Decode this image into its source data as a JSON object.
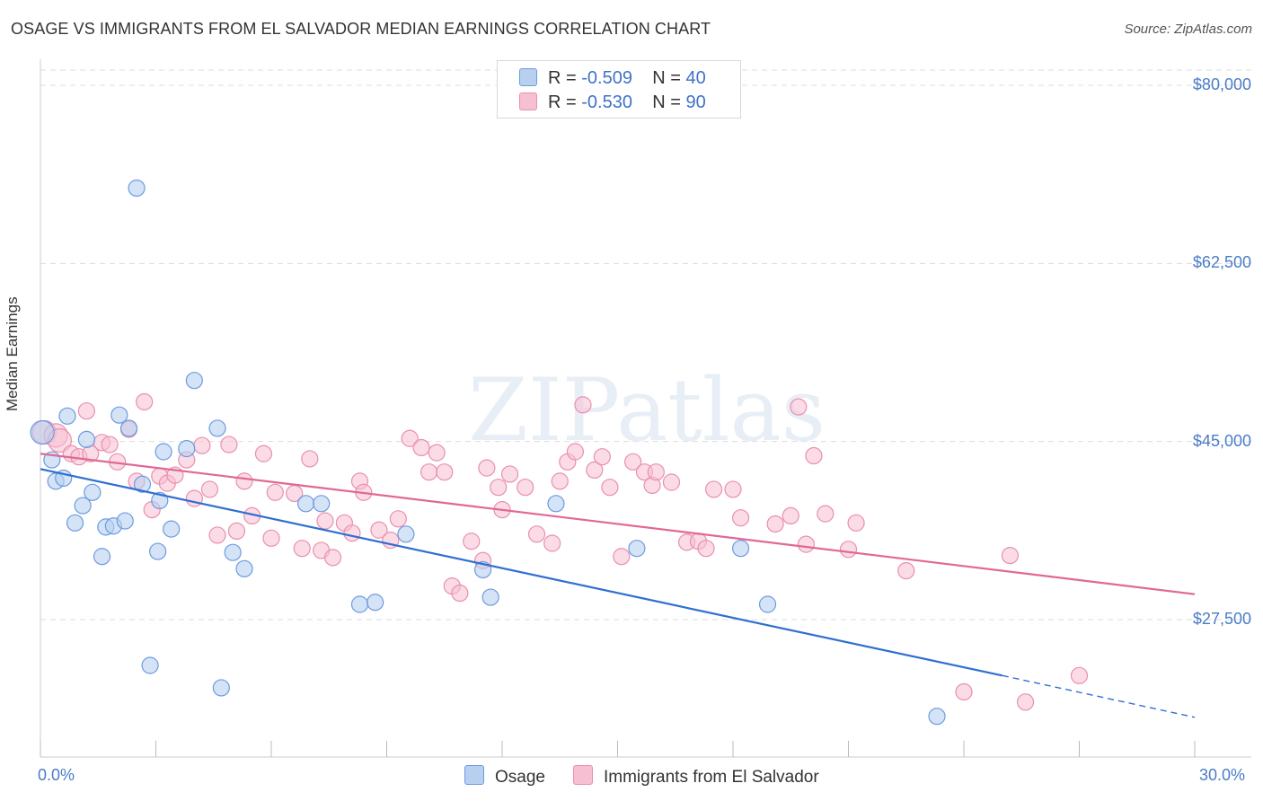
{
  "title": "OSAGE VS IMMIGRANTS FROM EL SALVADOR MEDIAN EARNINGS CORRELATION CHART",
  "source": "Source: ZipAtlas.com",
  "watermark": "ZIPatlas",
  "colors": {
    "osage_fill": "#b8d0f0",
    "osage_stroke": "#6d9be0",
    "osage_line": "#2f6fd0",
    "salvador_fill": "#f7c0d2",
    "salvador_stroke": "#e98fae",
    "salvador_line": "#e06896",
    "tick_text": "#4a7cc7",
    "grid": "#dddddd"
  },
  "legend": {
    "osage": {
      "r_label": "R = ",
      "r_value": "-0.509",
      "n_label": "N = ",
      "n_value": "40"
    },
    "salvador": {
      "r_label": "R = ",
      "r_value": "-0.530",
      "n_label": "N = ",
      "n_value": "90"
    }
  },
  "bottom_legend": {
    "osage": "Osage",
    "salvador": "Immigrants from El Salvador"
  },
  "chart_data": {
    "type": "scatter",
    "title": "OSAGE VS IMMIGRANTS FROM EL SALVADOR MEDIAN EARNINGS CORRELATION CHART",
    "xlabel": "",
    "ylabel": "Median Earnings",
    "xlim": [
      0,
      30
    ],
    "ylim": [
      14000,
      81500
    ],
    "ytick_values": [
      27500,
      45000,
      62500,
      80000
    ],
    "ytick_labels": [
      "$27,500",
      "$45,000",
      "$62,500",
      "$80,000"
    ],
    "xtick_labels": {
      "min": "0.0%",
      "max": "30.0%"
    },
    "grid": true,
    "series": [
      {
        "name": "Osage",
        "points": [
          [
            0.05,
            45900
          ],
          [
            0.3,
            43200
          ],
          [
            0.4,
            41100
          ],
          [
            0.6,
            41400
          ],
          [
            0.7,
            47500
          ],
          [
            0.9,
            37000
          ],
          [
            1.1,
            38700
          ],
          [
            1.2,
            45200
          ],
          [
            1.35,
            40000
          ],
          [
            1.6,
            33700
          ],
          [
            1.7,
            36600
          ],
          [
            1.9,
            36700
          ],
          [
            2.05,
            47600
          ],
          [
            2.2,
            37200
          ],
          [
            2.3,
            46300
          ],
          [
            2.5,
            69900
          ],
          [
            2.65,
            40800
          ],
          [
            2.85,
            23000
          ],
          [
            3.05,
            34200
          ],
          [
            3.1,
            39200
          ],
          [
            3.2,
            44000
          ],
          [
            3.4,
            36400
          ],
          [
            3.8,
            44300
          ],
          [
            4.0,
            51000
          ],
          [
            4.6,
            46300
          ],
          [
            4.7,
            20800
          ],
          [
            5.0,
            34100
          ],
          [
            5.3,
            32500
          ],
          [
            6.9,
            38900
          ],
          [
            7.3,
            38900
          ],
          [
            8.3,
            29000
          ],
          [
            8.7,
            29200
          ],
          [
            9.5,
            35900
          ],
          [
            11.5,
            32400
          ],
          [
            11.7,
            29700
          ],
          [
            13.4,
            38900
          ],
          [
            15.5,
            34500
          ],
          [
            18.2,
            34500
          ],
          [
            18.9,
            29000
          ],
          [
            23.3,
            18000
          ]
        ],
        "trend": {
          "x0": 0,
          "y0": 42300,
          "x1": 25.0,
          "y1": 22000,
          "dashed_to_x": 30.0,
          "dashed_to_y": 17900
        }
      },
      {
        "name": "Immigrants from El Salvador",
        "points": [
          [
            0.1,
            45900
          ],
          [
            0.4,
            45600
          ],
          [
            0.5,
            45100
          ],
          [
            0.8,
            43800
          ],
          [
            1.0,
            43500
          ],
          [
            1.2,
            48000
          ],
          [
            1.3,
            43800
          ],
          [
            1.6,
            44900
          ],
          [
            1.8,
            44700
          ],
          [
            2.0,
            43000
          ],
          [
            2.3,
            46200
          ],
          [
            2.5,
            41100
          ],
          [
            2.7,
            48900
          ],
          [
            2.9,
            38300
          ],
          [
            3.1,
            41600
          ],
          [
            3.3,
            40900
          ],
          [
            3.5,
            41700
          ],
          [
            3.8,
            43200
          ],
          [
            4.0,
            39400
          ],
          [
            4.2,
            44600
          ],
          [
            4.4,
            40300
          ],
          [
            4.6,
            35800
          ],
          [
            4.9,
            44700
          ],
          [
            5.1,
            36200
          ],
          [
            5.3,
            41100
          ],
          [
            5.5,
            37700
          ],
          [
            5.8,
            43800
          ],
          [
            6.0,
            35500
          ],
          [
            6.1,
            40000
          ],
          [
            6.6,
            39900
          ],
          [
            6.8,
            34500
          ],
          [
            7.0,
            43300
          ],
          [
            7.3,
            34300
          ],
          [
            7.4,
            37200
          ],
          [
            7.6,
            33600
          ],
          [
            7.9,
            37000
          ],
          [
            8.1,
            36000
          ],
          [
            8.3,
            41100
          ],
          [
            8.4,
            40000
          ],
          [
            8.8,
            36300
          ],
          [
            9.1,
            35300
          ],
          [
            9.3,
            37400
          ],
          [
            9.6,
            45300
          ],
          [
            9.9,
            44400
          ],
          [
            10.1,
            42000
          ],
          [
            10.3,
            43900
          ],
          [
            10.5,
            42000
          ],
          [
            10.7,
            30800
          ],
          [
            10.9,
            30100
          ],
          [
            11.2,
            35200
          ],
          [
            11.5,
            33300
          ],
          [
            11.6,
            42400
          ],
          [
            11.9,
            40500
          ],
          [
            12.0,
            38300
          ],
          [
            12.2,
            41800
          ],
          [
            12.6,
            40500
          ],
          [
            12.9,
            35900
          ],
          [
            13.3,
            35000
          ],
          [
            13.5,
            41100
          ],
          [
            13.7,
            43000
          ],
          [
            13.9,
            44000
          ],
          [
            14.1,
            48600
          ],
          [
            14.4,
            42200
          ],
          [
            14.6,
            43500
          ],
          [
            14.8,
            40500
          ],
          [
            15.1,
            33700
          ],
          [
            15.4,
            43000
          ],
          [
            15.7,
            42000
          ],
          [
            15.9,
            40700
          ],
          [
            16.0,
            42000
          ],
          [
            16.4,
            41000
          ],
          [
            16.8,
            35100
          ],
          [
            17.1,
            35200
          ],
          [
            17.3,
            34500
          ],
          [
            17.5,
            40300
          ],
          [
            18.0,
            40300
          ],
          [
            18.2,
            37500
          ],
          [
            19.1,
            36900
          ],
          [
            19.5,
            37700
          ],
          [
            19.7,
            48400
          ],
          [
            19.9,
            34900
          ],
          [
            20.1,
            43600
          ],
          [
            20.4,
            37900
          ],
          [
            21.0,
            34400
          ],
          [
            21.2,
            37000
          ],
          [
            22.5,
            32300
          ],
          [
            24.0,
            20400
          ],
          [
            25.2,
            33800
          ],
          [
            25.6,
            19400
          ],
          [
            27.0,
            22000
          ]
        ],
        "trend": {
          "x0": 0,
          "y0": 43800,
          "x1": 30.0,
          "y1": 30000
        }
      }
    ]
  }
}
